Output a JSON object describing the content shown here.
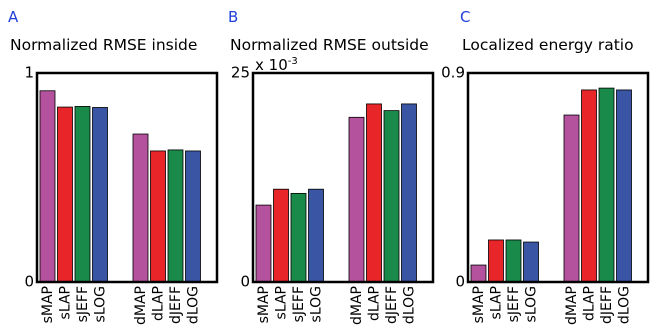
{
  "chart_data": [
    {
      "type": "bar",
      "panel": "A",
      "title": "Normalized RMSE inside",
      "categories": [
        "sMAP",
        "sLAP",
        "sJEFF",
        "sLOG",
        "dMAP",
        "dLAP",
        "dJEFF",
        "dLOG"
      ],
      "values": [
        0.915,
        0.837,
        0.84,
        0.835,
        0.708,
        0.627,
        0.632,
        0.627
      ],
      "colors": [
        "#b5529e",
        "#e8262a",
        "#1a8a4a",
        "#3a55a4",
        "#b5529e",
        "#e8262a",
        "#1a8a4a",
        "#3a55a4"
      ],
      "ylim": [
        0,
        1
      ],
      "yticks": [
        0,
        1
      ]
    },
    {
      "type": "bar",
      "panel": "B",
      "title": "Normalized RMSE outside",
      "multiplier": {
        "base": "x 10",
        "exponent": "-3"
      },
      "categories": [
        "sMAP",
        "sLAP",
        "sJEFF",
        "sLOG",
        "dMAP",
        "dLAP",
        "dJEFF",
        "dLOG"
      ],
      "values": [
        9.2,
        11.1,
        10.6,
        11.1,
        19.7,
        21.3,
        20.5,
        21.3
      ],
      "colors": [
        "#b5529e",
        "#e8262a",
        "#1a8a4a",
        "#3a55a4",
        "#b5529e",
        "#e8262a",
        "#1a8a4a",
        "#3a55a4"
      ],
      "ylim": [
        0,
        25
      ],
      "yticks": [
        0,
        25
      ]
    },
    {
      "type": "bar",
      "panel": "C",
      "title": "Localized energy ratio",
      "categories": [
        "sMAP",
        "sLAP",
        "sJEFF",
        "sLOG",
        "dMAP",
        "dLAP",
        "dJEFF",
        "dLOG"
      ],
      "values": [
        0.073,
        0.181,
        0.181,
        0.172,
        0.719,
        0.827,
        0.835,
        0.827
      ],
      "colors": [
        "#b5529e",
        "#e8262a",
        "#1a8a4a",
        "#3a55a4",
        "#b5529e",
        "#e8262a",
        "#1a8a4a",
        "#3a55a4"
      ],
      "ylim": [
        0,
        0.9
      ],
      "yticks": [
        0,
        0.9
      ]
    }
  ]
}
